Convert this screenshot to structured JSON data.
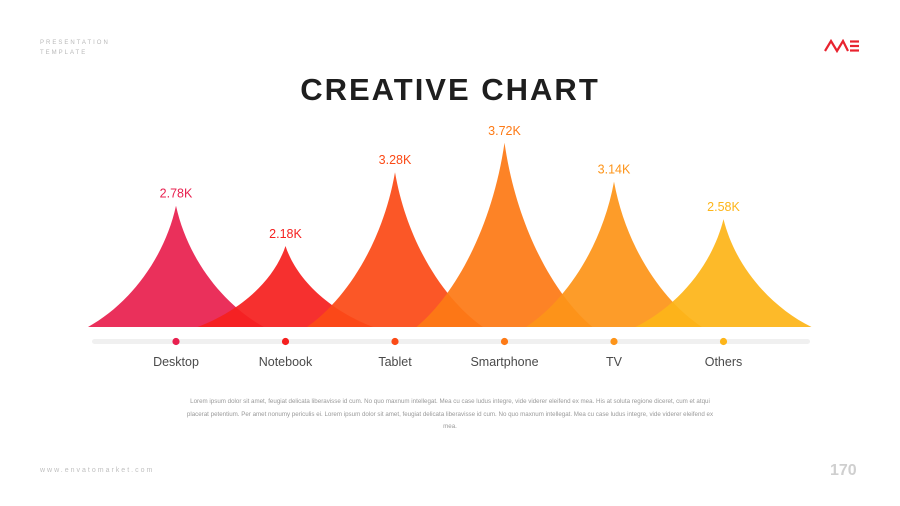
{
  "header": {
    "brand_line1": "PRESENTATION",
    "brand_line2": "TEMPLATE",
    "title": "CREATIVE CHART"
  },
  "logo": {
    "color": "#e8232f"
  },
  "chart_data": {
    "type": "area",
    "categories": [
      "Desktop",
      "Notebook",
      "Tablet",
      "Smartphone",
      "TV",
      "Others"
    ],
    "values": [
      2.78,
      2.18,
      3.28,
      3.72,
      3.14,
      2.58
    ],
    "value_labels": [
      "2.78K",
      "2.18K",
      "3.28K",
      "3.72K",
      "3.14K",
      "2.58K"
    ],
    "colors": [
      "#e8204f",
      "#f5201f",
      "#fb4a17",
      "#fd7a16",
      "#fd9419",
      "#fdb519"
    ],
    "ylim": [
      0,
      4
    ],
    "grid": false,
    "legend": "none"
  },
  "description": "Lorem ipsum dolor sit amet, feugiat delicata liberavisse id cum. No quo maxnum intellegat. Mea cu case ludus integre, vide viderer eleifend ex mea. His at soluta regione diceret, cum et atqui placerat petentium. Per amet nonumy periculis ei. Lorem ipsum dolor sit amet, feugiat delicata liberavisse id cum. No quo maxnum intellegat. Mea cu case ludus integre, vide viderer eleifend ex mea.",
  "footer": {
    "url": "www.envatomarket.com",
    "page_number": "170"
  }
}
